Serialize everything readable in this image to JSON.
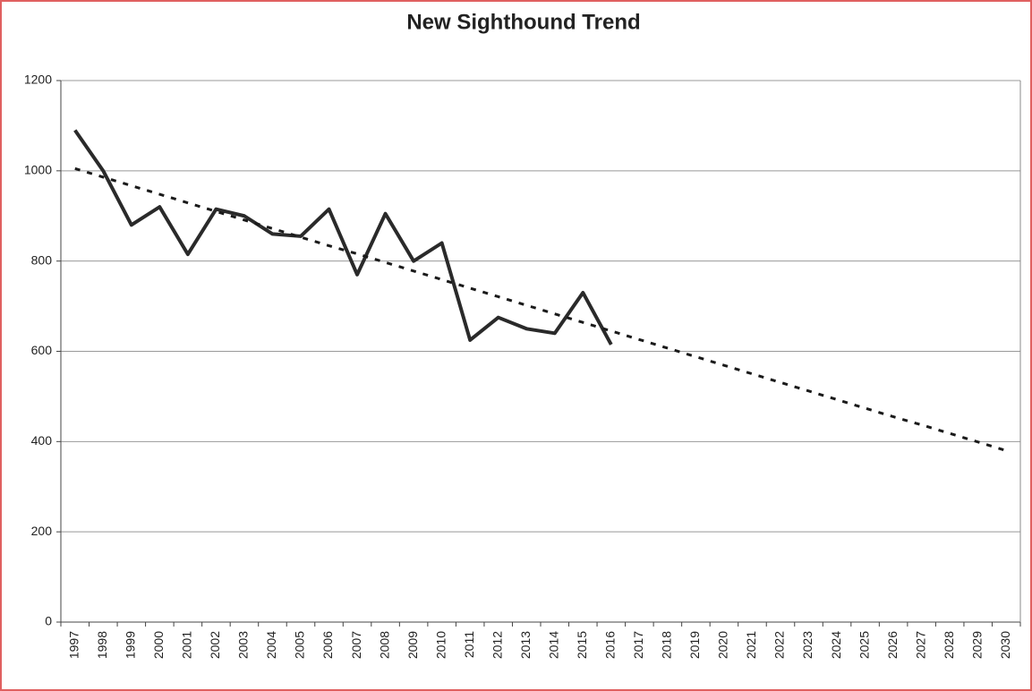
{
  "chart_data": {
    "type": "line",
    "title": "New Sighthound Trend",
    "categories": [
      "1997",
      "1998",
      "1999",
      "2000",
      "2001",
      "2002",
      "2003",
      "2004",
      "2005",
      "2006",
      "2007",
      "2008",
      "2009",
      "2010",
      "2011",
      "2012",
      "2013",
      "2014",
      "2015",
      "2016",
      "2017",
      "2018",
      "2019",
      "2020",
      "2021",
      "2022",
      "2023",
      "2024",
      "2025",
      "2026",
      "2027",
      "2028",
      "2029",
      "2030"
    ],
    "series": [
      {
        "color": "#2a2a2a",
        "style": "solid",
        "values": [
          1090,
          1000,
          880,
          920,
          815,
          915,
          900,
          860,
          855,
          915,
          770,
          905,
          800,
          840,
          625,
          675,
          650,
          640,
          730,
          615,
          null,
          null,
          null,
          null,
          null,
          null,
          null,
          null,
          null,
          null,
          null,
          null,
          null,
          null
        ]
      },
      {
        "color": "#1a1a1a",
        "style": "dotted",
        "values": [
          1005,
          986,
          967,
          948,
          929,
          910,
          891,
          872,
          853,
          834,
          816,
          797,
          778,
          759,
          740,
          721,
          702,
          683,
          664,
          645,
          626,
          607,
          588,
          569,
          550,
          531,
          512,
          493,
          474,
          455,
          437,
          418,
          399,
          380
        ]
      }
    ],
    "ylim": [
      0,
      1200
    ],
    "yticks": [
      0,
      200,
      400,
      600,
      800,
      1000,
      1200
    ],
    "grid": true
  }
}
